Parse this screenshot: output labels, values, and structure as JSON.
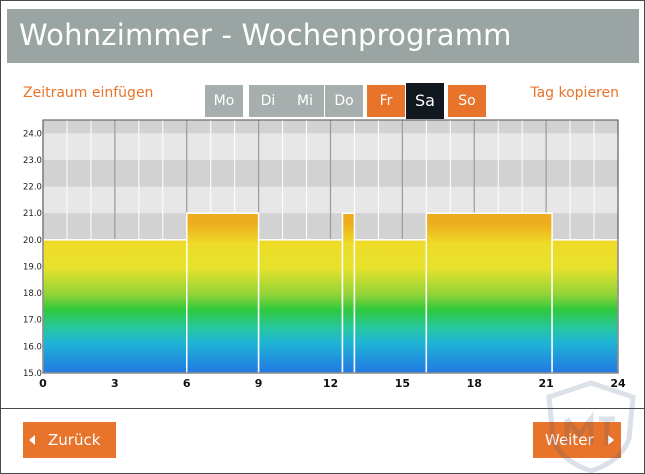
{
  "window": {
    "title": "Wohnzimmer - Wochenprogramm"
  },
  "actions": {
    "insert_period": "Zeitraum einfügen",
    "copy_day": "Tag kopieren"
  },
  "days": [
    {
      "label": "Mo",
      "state": "inactive"
    },
    {
      "label": "Di",
      "state": "inactive"
    },
    {
      "label": "Mi",
      "state": "inactive"
    },
    {
      "label": "Do",
      "state": "inactive"
    },
    {
      "label": "Fr",
      "state": "active"
    },
    {
      "label": "Sa",
      "state": "current"
    },
    {
      "label": "So",
      "state": "active"
    }
  ],
  "chart_data": {
    "type": "bar",
    "x_ticks": [
      "0",
      "3",
      "6",
      "9",
      "12",
      "15",
      "18",
      "21",
      "24"
    ],
    "y_ticks": [
      "15.0",
      "16.0",
      "17.0",
      "18.0",
      "19.0",
      "20.0",
      "21.0",
      "22.0",
      "23.0",
      "24.0"
    ],
    "xlim": [
      0,
      24
    ],
    "ylim": [
      15,
      24.5
    ],
    "x_unit": "hour",
    "y_unit": "°C",
    "segments": [
      {
        "start": 0,
        "end": 6,
        "value": 20.0
      },
      {
        "start": 6,
        "end": 9,
        "value": 21.0
      },
      {
        "start": 9,
        "end": 12.5,
        "value": 20.0
      },
      {
        "start": 12.5,
        "end": 13,
        "value": 21.0
      },
      {
        "start": 13,
        "end": 16,
        "value": 20.0
      },
      {
        "start": 16,
        "end": 21.25,
        "value": 21.0
      },
      {
        "start": 21.25,
        "end": 24,
        "value": 20.0
      }
    ],
    "grid": true
  },
  "navigation": {
    "back": "Zurück",
    "next": "Weiter"
  },
  "colors": {
    "accent": "#e8732a",
    "title_bar": "#9aa4a2",
    "day_inactive": "#a7afae",
    "day_current": "#12181f"
  }
}
